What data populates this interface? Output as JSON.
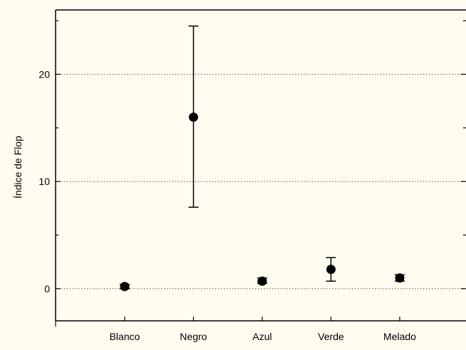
{
  "chart_data": {
    "type": "scatter",
    "title": "",
    "xlabel": "",
    "ylabel": "Índice de Flop",
    "categories": [
      "Blanco",
      "Negro",
      "Azul",
      "Verde",
      "Melado"
    ],
    "series": [
      {
        "values": [
          0.2,
          16.0,
          0.7,
          1.8,
          1.0
        ],
        "error_low": [
          0.0,
          7.6,
          0.5,
          0.7,
          0.7
        ],
        "error_high": [
          0.4,
          24.5,
          1.0,
          2.9,
          1.3
        ]
      }
    ],
    "ylim": [
      -3,
      26
    ],
    "yticks": [
      0,
      10,
      20
    ],
    "ytick_labels": [
      "0",
      "10",
      "20"
    ],
    "grid": "horizontal dotted at major y ticks",
    "marker_color": "#000000",
    "background_color": "#fffdf0"
  }
}
